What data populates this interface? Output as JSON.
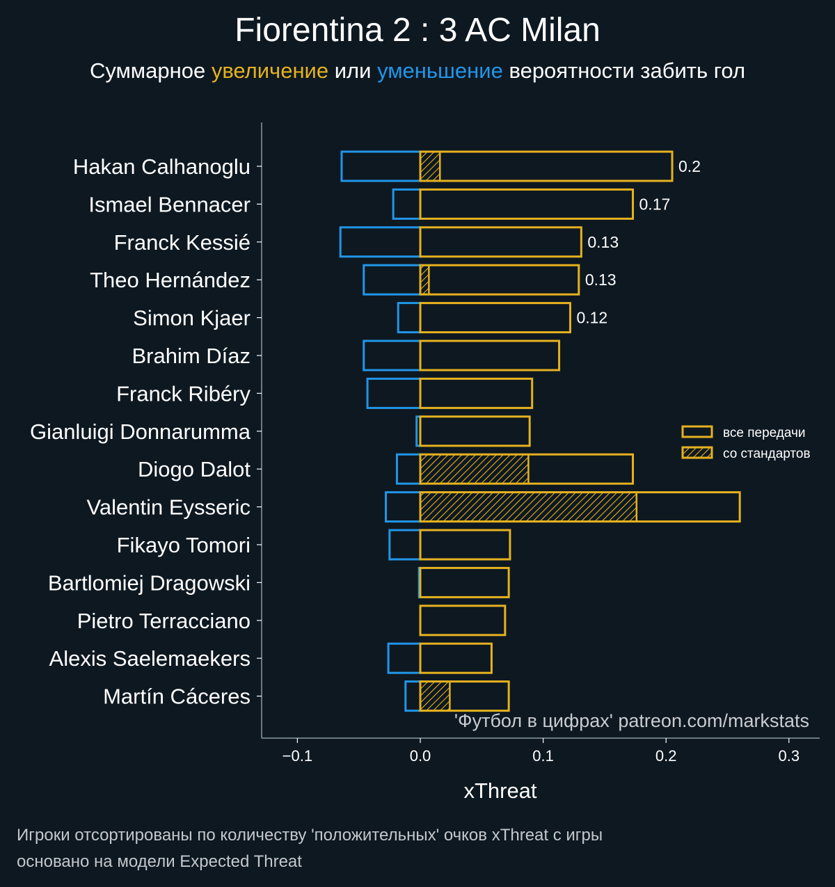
{
  "title": "Fiorentina 2 : 3 AC Milan",
  "subtitle": {
    "prefix": "Суммарное ",
    "positive_word": "увеличение",
    "middle": " или ",
    "negative_word": "уменьшение",
    "suffix": " вероятности забить гол"
  },
  "watermark": "'Футбол в цифрах' patreon.com/markstats",
  "footer": {
    "line1": "Игроки отсортированы по количеству 'положительных' очков xThreat с игры",
    "line2": "основано на модели Expected Threat"
  },
  "colors": {
    "background": "#0e1821",
    "positive": "#e5b21f",
    "negative": "#2196e8",
    "axis": "#8a9aa3"
  },
  "chart_data": {
    "type": "bar",
    "orientation": "horizontal",
    "xlabel": "xThreat",
    "xlim": [
      -0.13,
      0.325
    ],
    "xticks": [
      -0.1,
      0.0,
      0.1,
      0.2,
      0.3
    ],
    "xtick_labels": [
      "−0.1",
      "0.0",
      "0.1",
      "0.2",
      "0.3"
    ],
    "legend": {
      "position": "right",
      "entries": [
        "все передачи",
        "со стандартов"
      ]
    },
    "categories": [
      "Hakan Calhanoglu",
      "Ismael Bennacer",
      "Franck Kessié",
      "Theo Hernández",
      "Simon Kjaer",
      "Brahim Díaz",
      "Franck Ribéry",
      "Gianluigi Donnarumma",
      "Diogo Dalot",
      "Valentin Eysseric",
      "Fikayo Tomori",
      "Bartlomiej Dragowski",
      "Pietro Terracciano",
      "Alexis Saelemaekers",
      "Martín Cáceres"
    ],
    "series": [
      {
        "name": "все передачи (positive)",
        "values": [
          0.205,
          0.173,
          0.131,
          0.129,
          0.122,
          0.113,
          0.091,
          0.089,
          0.173,
          0.26,
          0.073,
          0.072,
          0.069,
          0.058,
          0.072
        ]
      },
      {
        "name": "со стандартов",
        "values": [
          0.016,
          0.0,
          0.0,
          0.007,
          0.0,
          0.0,
          0.0,
          0.0,
          0.088,
          0.176,
          0.0,
          0.0,
          0.0,
          0.0,
          0.024
        ]
      },
      {
        "name": "negative",
        "values": [
          -0.064,
          -0.022,
          -0.065,
          -0.046,
          -0.018,
          -0.046,
          -0.043,
          -0.003,
          -0.019,
          -0.028,
          -0.025,
          -0.001,
          0.0,
          -0.026,
          -0.012
        ]
      }
    ],
    "value_labels": [
      "0.2",
      "0.17",
      "0.13",
      "0.13",
      "0.12",
      "",
      "",
      "",
      "",
      "",
      "",
      "",
      "",
      "",
      ""
    ]
  }
}
